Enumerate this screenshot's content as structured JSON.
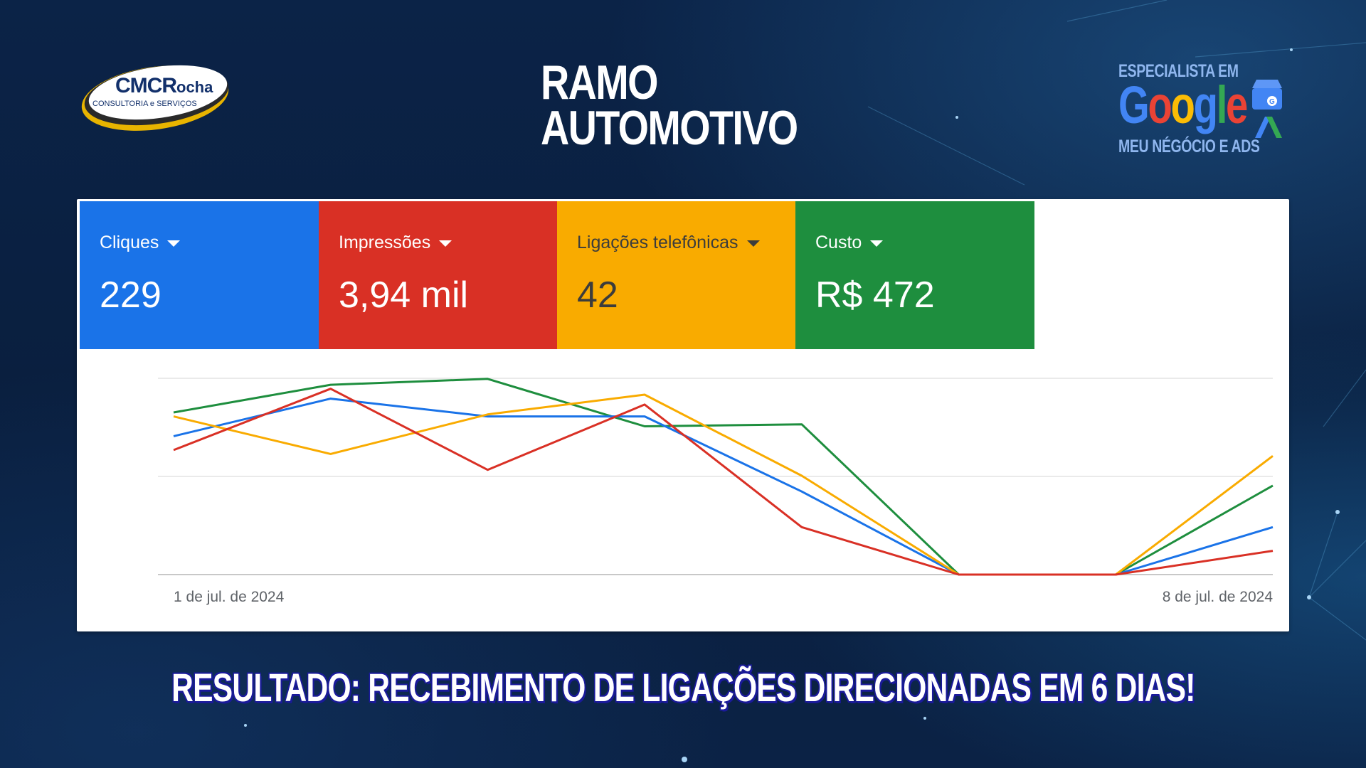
{
  "header": {
    "title_line1": "RAMO",
    "title_line2": "AUTOMOTIVO"
  },
  "logo_left": {
    "name_main": "CMCR",
    "name_tail": "ocha",
    "tagline": "CONSULTORIA e SERVIÇOS"
  },
  "logo_right": {
    "top_text": "ESPECIALISTA EM",
    "brand": "Google",
    "bottom_text": "MEU NÉGÓCIO E ADS",
    "icon": "google-my-business-and-ads-icon"
  },
  "metrics": [
    {
      "label": "Cliques",
      "value": "229",
      "color": "#1a73e8",
      "text_color": "#ffffff"
    },
    {
      "label": "Impressões",
      "value": "3,94 mil",
      "color": "#d93025",
      "text_color": "#ffffff"
    },
    {
      "label": "Ligações telefônicas",
      "value": "42",
      "color": "#f9ab00",
      "text_color": "#3c3c3c"
    },
    {
      "label": "Custo",
      "value": "R$ 472",
      "color": "#1e8e3e",
      "text_color": "#ffffff"
    }
  ],
  "chart_data": {
    "type": "line",
    "x_start_label": "1 de jul. de 2024",
    "x_end_label": "8 de jul. de 2024",
    "grid": true,
    "ylim": [
      0,
      1
    ],
    "series": [
      {
        "color": "#1e8e3e",
        "values": [
          0.82,
          0.96,
          0.99,
          0.75,
          0.76,
          0.0,
          0.0,
          0.45
        ]
      },
      {
        "color": "#1a73e8",
        "values": [
          0.7,
          0.89,
          0.8,
          0.8,
          0.42,
          0.0,
          0.0,
          0.24
        ]
      },
      {
        "color": "#f9ab00",
        "values": [
          0.8,
          0.61,
          0.81,
          0.91,
          0.5,
          0.0,
          0.0,
          0.6
        ]
      },
      {
        "color": "#d93025",
        "values": [
          0.63,
          0.94,
          0.53,
          0.86,
          0.24,
          0.0,
          0.0,
          0.12
        ]
      }
    ]
  },
  "footer": {
    "caption": "RESULTADO: RECEBIMENTO DE LIGAÇÕES DIRECIONADAS EM 6 DIAS!"
  }
}
